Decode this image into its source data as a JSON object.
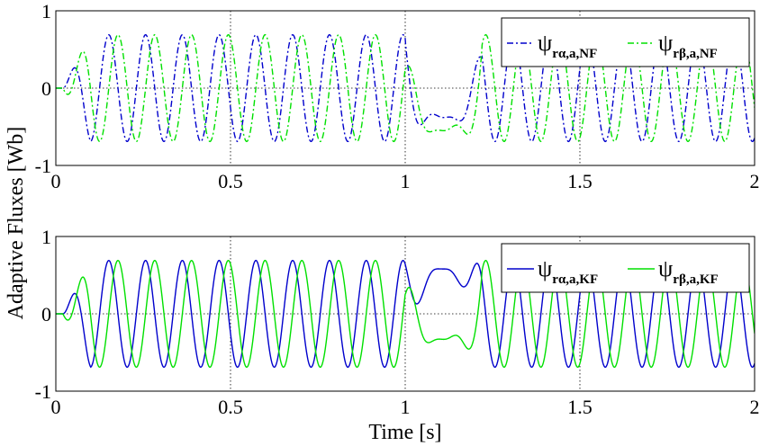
{
  "chart_data": [
    {
      "type": "line",
      "title": "",
      "xlabel": "",
      "ylabel": "Adaptive Fluxes [Wb]",
      "xlim": [
        0,
        2
      ],
      "ylim": [
        -1,
        1
      ],
      "xticks": [
        0,
        0.5,
        1,
        1.5,
        2
      ],
      "xtick_labels": [
        "0",
        "0.5",
        "1",
        "1.5",
        "2"
      ],
      "yticks": [
        -1,
        0,
        1
      ],
      "ytick_labels": [
        "-1",
        "0",
        "1"
      ],
      "grid": true,
      "legend_position": "top-right",
      "signal_model": {
        "start_delay_s": 0.02,
        "settle_s": 0.08,
        "frequency_hz": 9.5,
        "amplitude_wb": 0.69,
        "transient_window_s": [
          1.0,
          1.22
        ]
      },
      "series": [
        {
          "name": "ψ_{rα,a,NF}",
          "label_main": "ψ",
          "label_sub": "rα,a,NF",
          "color": "#0000cc",
          "style": "dashdot",
          "component": "alpha",
          "transient_peak_wb": -0.38
        },
        {
          "name": "ψ_{rβ,a,NF}",
          "label_main": "ψ",
          "label_sub": "rβ,a,NF",
          "color": "#00e000",
          "style": "dashdot",
          "component": "beta",
          "transient_peak_wb": -0.55
        }
      ]
    },
    {
      "type": "line",
      "title": "",
      "xlabel": "Time [s]",
      "ylabel": "",
      "xlim": [
        0,
        2
      ],
      "ylim": [
        -1,
        1
      ],
      "xticks": [
        0,
        0.5,
        1,
        1.5,
        2
      ],
      "xtick_labels": [
        "0",
        "0.5",
        "1",
        "1.5",
        "2"
      ],
      "yticks": [
        -1,
        0,
        1
      ],
      "ytick_labels": [
        "-1",
        "0",
        "1"
      ],
      "grid": true,
      "legend_position": "top-right",
      "signal_model": {
        "start_delay_s": 0.02,
        "settle_s": 0.08,
        "frequency_hz": 9.5,
        "amplitude_wb": 0.69,
        "transient_window_s": [
          1.0,
          1.22
        ]
      },
      "series": [
        {
          "name": "ψ_{rα,a,KF}",
          "label_main": "ψ",
          "label_sub": "rα,a,KF",
          "color": "#0000cc",
          "style": "solid",
          "component": "alpha",
          "transient_peak_wb": 0.58
        },
        {
          "name": "ψ_{rβ,a,KF}",
          "label_main": "ψ",
          "label_sub": "rβ,a,KF",
          "color": "#00e000",
          "style": "solid",
          "component": "beta",
          "transient_peak_wb": -0.33
        }
      ]
    }
  ]
}
